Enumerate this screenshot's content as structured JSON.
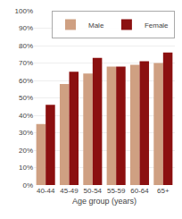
{
  "chart_data": {
    "type": "bar",
    "xlabel": "Age group (years)",
    "categories": [
      "40-44",
      "45-49",
      "50-54",
      "55-59",
      "60-64",
      "65+"
    ],
    "series": [
      {
        "name": "Male",
        "color": "#CFA082",
        "values": [
          35,
          58,
          64,
          68,
          69,
          70
        ]
      },
      {
        "name": "Female",
        "color": "#8B1010",
        "values": [
          46,
          65,
          73,
          68,
          71,
          76
        ]
      }
    ],
    "ylim": [
      0,
      100
    ],
    "yticks": [
      {
        "value": 0,
        "label": "0%"
      },
      {
        "value": 10,
        "label": "10%"
      },
      {
        "value": 20,
        "label": "20%"
      },
      {
        "value": 30,
        "label": "30%"
      },
      {
        "value": 40,
        "label": "40%"
      },
      {
        "value": 50,
        "label": "50%"
      },
      {
        "value": 60,
        "label": "60%"
      },
      {
        "value": 70,
        "label": "70%"
      },
      {
        "value": 80,
        "label": "80%"
      },
      {
        "value": 90,
        "label": "90%"
      },
      {
        "value": 100,
        "label": "100%"
      }
    ],
    "grid": true,
    "legend": "upper right"
  }
}
